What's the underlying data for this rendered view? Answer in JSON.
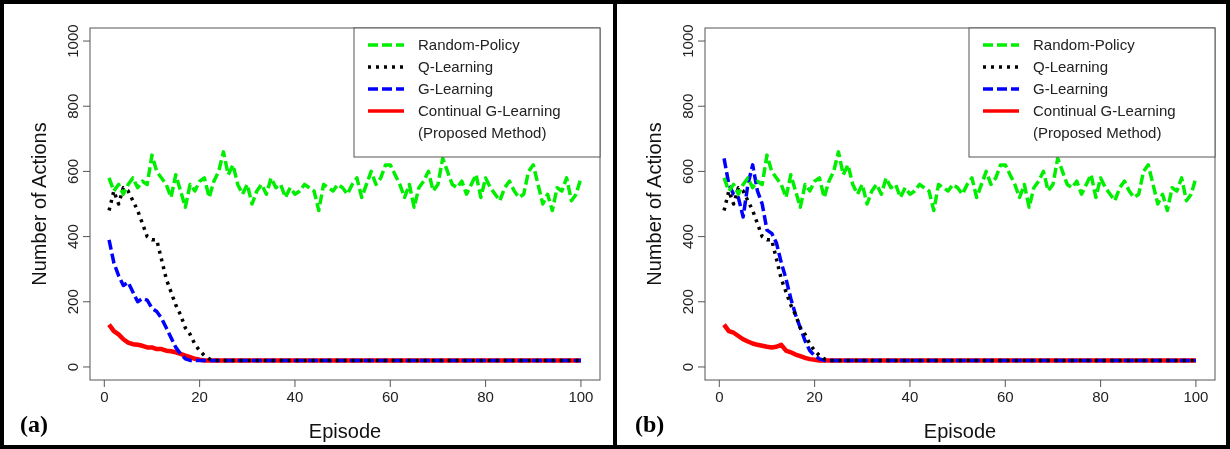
{
  "chart_data": [
    {
      "type": "line",
      "xlabel": "Episode",
      "ylabel": "Number of Actions",
      "annotations": [
        "(a)"
      ],
      "xlim": [
        -3,
        104
      ],
      "ylim": [
        -40,
        1040
      ],
      "xticks": [
        0,
        20,
        40,
        60,
        80,
        100
      ],
      "yticks": [
        0,
        200,
        400,
        600,
        800,
        1000
      ],
      "grid": false,
      "legend": "top right",
      "x": [
        1,
        2,
        3,
        4,
        5,
        6,
        7,
        8,
        9,
        10,
        11,
        12,
        13,
        14,
        15,
        16,
        17,
        18,
        19,
        20,
        21,
        22,
        23,
        24,
        25,
        26,
        27,
        28,
        29,
        30,
        31,
        32,
        33,
        34,
        35,
        36,
        37,
        38,
        39,
        40,
        41,
        42,
        43,
        44,
        45,
        46,
        47,
        48,
        49,
        50,
        51,
        52,
        53,
        54,
        55,
        56,
        57,
        58,
        59,
        60,
        61,
        62,
        63,
        64,
        65,
        66,
        67,
        68,
        69,
        70,
        71,
        72,
        73,
        74,
        75,
        76,
        77,
        78,
        79,
        80,
        81,
        82,
        83,
        84,
        85,
        86,
        87,
        88,
        89,
        90,
        91,
        92,
        93,
        94,
        95,
        96,
        97,
        98,
        99,
        100
      ],
      "series": [
        {
          "name": "Random-Policy",
          "color": "#00ee00",
          "line_style": "dashed",
          "values": [
            580,
            540,
            560,
            530,
            560,
            580,
            550,
            570,
            560,
            650,
            600,
            580,
            560,
            520,
            590,
            540,
            490,
            560,
            540,
            570,
            580,
            520,
            570,
            600,
            660,
            590,
            620,
            560,
            530,
            560,
            500,
            540,
            560,
            530,
            580,
            550,
            560,
            520,
            550,
            530,
            540,
            560,
            550,
            540,
            480,
            560,
            550,
            540,
            560,
            550,
            530,
            560,
            580,
            520,
            560,
            600,
            560,
            580,
            620,
            620,
            590,
            560,
            520,
            560,
            490,
            550,
            570,
            600,
            540,
            560,
            640,
            600,
            560,
            550,
            570,
            530,
            560,
            590,
            520,
            580,
            550,
            530,
            510,
            550,
            570,
            540,
            520,
            530,
            600,
            620,
            560,
            500,
            530,
            480,
            550,
            540,
            580,
            510,
            530,
            580
          ]
        },
        {
          "name": "Q-Learning",
          "color": "#000000",
          "line_style": "dotted",
          "values": [
            480,
            540,
            500,
            550,
            540,
            510,
            480,
            440,
            400,
            390,
            390,
            330,
            270,
            230,
            190,
            160,
            120,
            100,
            70,
            50,
            35,
            25,
            20,
            20,
            20,
            20,
            20,
            20,
            20,
            20,
            20,
            20,
            20,
            20,
            20,
            20,
            20,
            20,
            20,
            20,
            20,
            20,
            20,
            20,
            20,
            20,
            20,
            20,
            20,
            20,
            20,
            20,
            20,
            20,
            20,
            20,
            20,
            20,
            20,
            20,
            20,
            20,
            20,
            20,
            20,
            20,
            20,
            20,
            20,
            20,
            20,
            20,
            20,
            20,
            20,
            20,
            20,
            20,
            20,
            20,
            20,
            20,
            20,
            20,
            20,
            20,
            20,
            20,
            20,
            20,
            20,
            20,
            20,
            20,
            20,
            20,
            20,
            20,
            20,
            20
          ]
        },
        {
          "name": "G-Learning",
          "color": "#0000ff",
          "line_style": "dashed",
          "values": [
            390,
            320,
            280,
            250,
            260,
            230,
            200,
            210,
            205,
            180,
            170,
            150,
            120,
            90,
            60,
            40,
            25,
            20,
            20,
            20,
            20,
            20,
            20,
            20,
            20,
            20,
            20,
            20,
            20,
            20,
            20,
            20,
            20,
            20,
            20,
            20,
            20,
            20,
            20,
            20,
            20,
            20,
            20,
            20,
            20,
            20,
            20,
            20,
            20,
            20,
            20,
            20,
            20,
            20,
            20,
            20,
            20,
            20,
            20,
            20,
            20,
            20,
            20,
            20,
            20,
            20,
            20,
            20,
            20,
            20,
            20,
            20,
            20,
            20,
            20,
            20,
            20,
            20,
            20,
            20,
            20,
            20,
            20,
            20,
            20,
            20,
            20,
            20,
            20,
            20,
            20,
            20,
            20,
            20,
            20,
            20,
            20,
            20,
            20,
            20
          ]
        },
        {
          "name": "Continual G-Learning\n(Proposed Method)",
          "color": "#ff0000",
          "line_style": "solid",
          "values": [
            130,
            110,
            100,
            85,
            75,
            70,
            68,
            65,
            60,
            60,
            55,
            55,
            50,
            48,
            45,
            40,
            35,
            30,
            25,
            22,
            20,
            20,
            20,
            20,
            20,
            20,
            20,
            20,
            20,
            20,
            20,
            20,
            20,
            20,
            20,
            20,
            20,
            20,
            20,
            20,
            20,
            20,
            20,
            20,
            20,
            20,
            20,
            20,
            20,
            20,
            20,
            20,
            20,
            20,
            20,
            20,
            20,
            20,
            20,
            20,
            20,
            20,
            20,
            20,
            20,
            20,
            20,
            20,
            20,
            20,
            20,
            20,
            20,
            20,
            20,
            20,
            20,
            20,
            20,
            20,
            20,
            20,
            20,
            20,
            20,
            20,
            20,
            20,
            20,
            20,
            20,
            20,
            20,
            20,
            20,
            20,
            20,
            20,
            20,
            20
          ]
        }
      ]
    },
    {
      "type": "line",
      "xlabel": "Episode",
      "ylabel": "Number of Actions",
      "annotations": [
        "(b)"
      ],
      "xlim": [
        -3,
        104
      ],
      "ylim": [
        -40,
        1040
      ],
      "xticks": [
        0,
        20,
        40,
        60,
        80,
        100
      ],
      "yticks": [
        0,
        200,
        400,
        600,
        800,
        1000
      ],
      "grid": false,
      "legend": "top right",
      "x": [
        1,
        2,
        3,
        4,
        5,
        6,
        7,
        8,
        9,
        10,
        11,
        12,
        13,
        14,
        15,
        16,
        17,
        18,
        19,
        20,
        21,
        22,
        23,
        24,
        25,
        26,
        27,
        28,
        29,
        30,
        31,
        32,
        33,
        34,
        35,
        36,
        37,
        38,
        39,
        40,
        41,
        42,
        43,
        44,
        45,
        46,
        47,
        48,
        49,
        50,
        51,
        52,
        53,
        54,
        55,
        56,
        57,
        58,
        59,
        60,
        61,
        62,
        63,
        64,
        65,
        66,
        67,
        68,
        69,
        70,
        71,
        72,
        73,
        74,
        75,
        76,
        77,
        78,
        79,
        80,
        81,
        82,
        83,
        84,
        85,
        86,
        87,
        88,
        89,
        90,
        91,
        92,
        93,
        94,
        95,
        96,
        97,
        98,
        99,
        100
      ],
      "series": [
        {
          "name": "Random-Policy",
          "color": "#00ee00",
          "line_style": "dashed",
          "values": [
            580,
            540,
            560,
            530,
            560,
            580,
            550,
            570,
            560,
            650,
            600,
            580,
            560,
            520,
            590,
            540,
            490,
            560,
            540,
            570,
            580,
            520,
            570,
            600,
            660,
            590,
            620,
            560,
            530,
            560,
            500,
            540,
            560,
            530,
            580,
            550,
            560,
            520,
            550,
            530,
            540,
            560,
            550,
            540,
            480,
            560,
            550,
            540,
            560,
            550,
            530,
            560,
            580,
            520,
            560,
            600,
            560,
            580,
            620,
            620,
            590,
            560,
            520,
            560,
            490,
            550,
            570,
            600,
            540,
            560,
            640,
            600,
            560,
            550,
            570,
            530,
            560,
            590,
            520,
            580,
            550,
            530,
            510,
            550,
            570,
            540,
            520,
            530,
            600,
            620,
            560,
            500,
            530,
            480,
            550,
            540,
            580,
            510,
            530,
            580
          ]
        },
        {
          "name": "Q-Learning",
          "color": "#000000",
          "line_style": "dotted",
          "values": [
            480,
            540,
            500,
            550,
            540,
            510,
            480,
            440,
            400,
            390,
            390,
            330,
            270,
            230,
            190,
            160,
            120,
            100,
            70,
            50,
            35,
            25,
            20,
            20,
            20,
            20,
            20,
            20,
            20,
            20,
            20,
            20,
            20,
            20,
            20,
            20,
            20,
            20,
            20,
            20,
            20,
            20,
            20,
            20,
            20,
            20,
            20,
            20,
            20,
            20,
            20,
            20,
            20,
            20,
            20,
            20,
            20,
            20,
            20,
            20,
            20,
            20,
            20,
            20,
            20,
            20,
            20,
            20,
            20,
            20,
            20,
            20,
            20,
            20,
            20,
            20,
            20,
            20,
            20,
            20,
            20,
            20,
            20,
            20,
            20,
            20,
            20,
            20,
            20,
            20,
            20,
            20,
            20,
            20,
            20,
            20,
            20,
            20,
            20,
            20
          ]
        },
        {
          "name": "G-Learning",
          "color": "#0000ff",
          "line_style": "dashed",
          "values": [
            640,
            560,
            530,
            520,
            460,
            560,
            620,
            540,
            500,
            420,
            410,
            380,
            320,
            270,
            210,
            160,
            120,
            80,
            50,
            35,
            25,
            20,
            20,
            20,
            20,
            20,
            20,
            20,
            20,
            20,
            20,
            20,
            20,
            20,
            20,
            20,
            20,
            20,
            20,
            20,
            20,
            20,
            20,
            20,
            20,
            20,
            20,
            20,
            20,
            20,
            20,
            20,
            20,
            20,
            20,
            20,
            20,
            20,
            20,
            20,
            20,
            20,
            20,
            20,
            20,
            20,
            20,
            20,
            20,
            20,
            20,
            20,
            20,
            20,
            20,
            20,
            20,
            20,
            20,
            20,
            20,
            20,
            20,
            20,
            20,
            20,
            20,
            20,
            20,
            20,
            20,
            20,
            20,
            20,
            20,
            20,
            20,
            20,
            20,
            20
          ]
        },
        {
          "name": "Continual G-Learning\n(Proposed Method)",
          "color": "#ff0000",
          "line_style": "solid",
          "values": [
            130,
            110,
            105,
            95,
            85,
            78,
            72,
            68,
            65,
            62,
            60,
            62,
            68,
            50,
            45,
            38,
            33,
            28,
            24,
            22,
            20,
            20,
            20,
            20,
            20,
            20,
            20,
            20,
            20,
            20,
            20,
            20,
            20,
            20,
            20,
            20,
            20,
            20,
            20,
            20,
            20,
            20,
            20,
            20,
            20,
            20,
            20,
            20,
            20,
            20,
            20,
            20,
            20,
            20,
            20,
            20,
            20,
            20,
            20,
            20,
            20,
            20,
            20,
            20,
            20,
            20,
            20,
            20,
            20,
            20,
            20,
            20,
            20,
            20,
            20,
            20,
            20,
            20,
            20,
            20,
            20,
            20,
            20,
            20,
            20,
            20,
            20,
            20,
            20,
            20,
            20,
            20,
            20,
            20,
            20,
            20,
            20,
            20,
            20,
            20
          ]
        }
      ]
    }
  ]
}
